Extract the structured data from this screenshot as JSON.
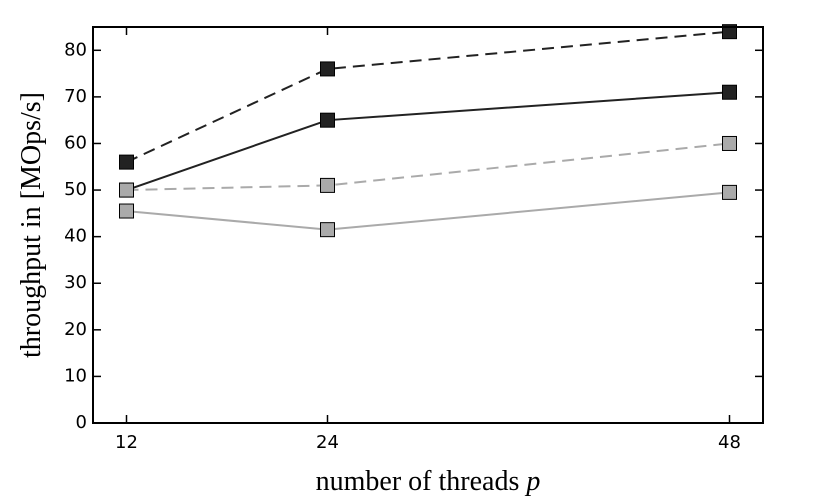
{
  "chart_data": {
    "type": "line",
    "xlabel": {
      "text": "number of threads",
      "variable": "p"
    },
    "ylabel": "throughput in [MOps/s]",
    "x": [
      12,
      24,
      48
    ],
    "xlim": [
      10,
      50
    ],
    "xticks": [
      12,
      24,
      48
    ],
    "ylim": [
      0,
      85
    ],
    "yticks": [
      0,
      10,
      20,
      30,
      40,
      50,
      60,
      70,
      80
    ],
    "series": [
      {
        "color": "#222222",
        "linestyle": "dashed",
        "values": [
          56,
          76,
          84
        ]
      },
      {
        "color": "#222222",
        "linestyle": "solid",
        "values": [
          50,
          65,
          71
        ]
      },
      {
        "color": "#aaaaaa",
        "linestyle": "dashed",
        "values": [
          50,
          51,
          60
        ]
      },
      {
        "color": "#aaaaaa",
        "linestyle": "solid",
        "values": [
          45.5,
          41.5,
          49.5
        ]
      }
    ]
  }
}
